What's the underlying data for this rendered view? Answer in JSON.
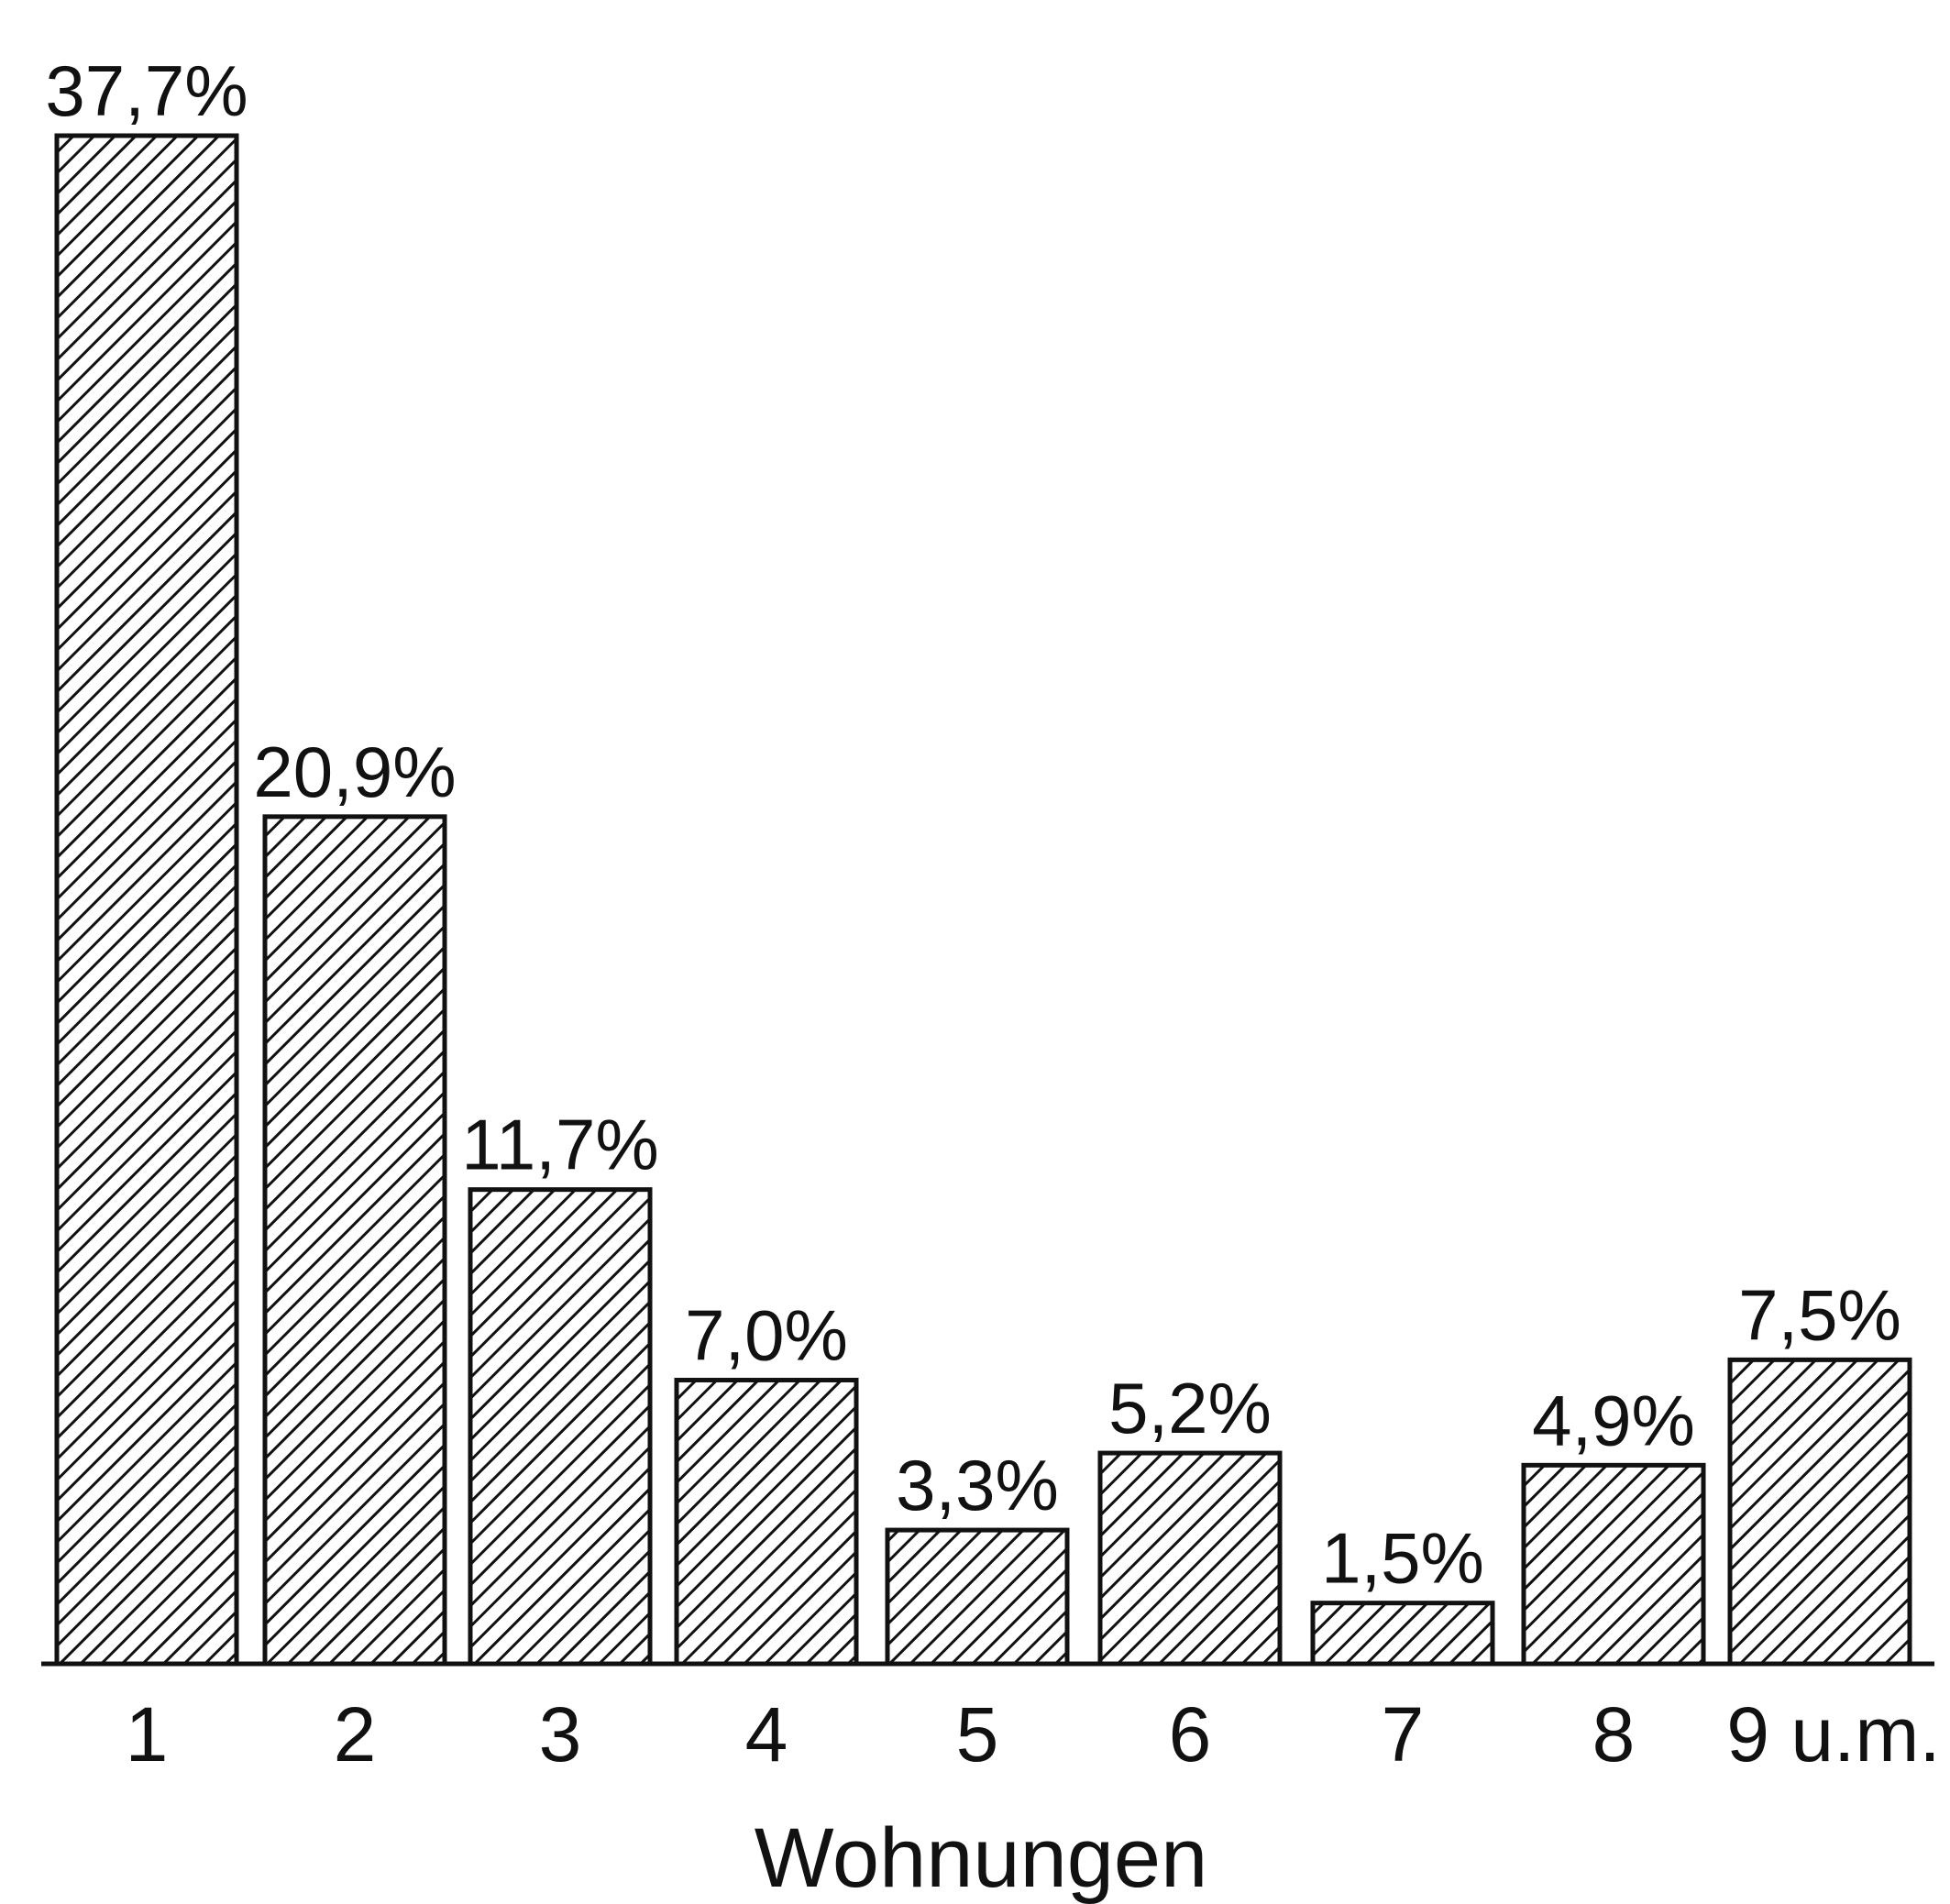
{
  "chart_data": {
    "type": "bar",
    "categories": [
      "1",
      "2",
      "3",
      "4",
      "5",
      "6",
      "7",
      "8",
      "9 u.m."
    ],
    "values": [
      37.7,
      20.9,
      11.7,
      7.0,
      3.3,
      5.2,
      1.5,
      4.9,
      7.5
    ],
    "value_labels": [
      "37,7%",
      "20,9%",
      "11,7%",
      "7,0%",
      "3,3%",
      "5,2%",
      "1,5%",
      "4,9%",
      "7,5%"
    ],
    "xlabel": "Wohnungen",
    "ylabel": "",
    "ylim": [
      0,
      37.7
    ],
    "grid": false,
    "pattern": "diagonal-hatch",
    "bar_color": "#111111"
  }
}
